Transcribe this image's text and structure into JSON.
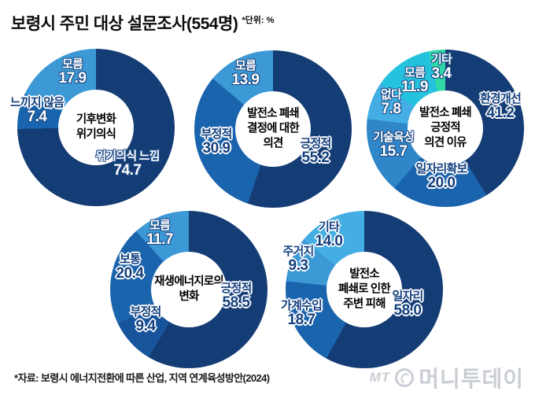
{
  "title": "보령시 주민 대상 설문조사(554명)",
  "unit_note": "*단위: %",
  "source": "*자료: 보령시 에너지전환에 따른 산업, 지역 연계육성방안(2024)",
  "logo": {
    "mt": "MT",
    "name": "머니투데이"
  },
  "palette": {
    "navy": "#143c75",
    "deep_blue": "#17549c",
    "medium_blue": "#1a64ad",
    "medium_light_blue": "#2f87c9",
    "light_blue": "#3c99d5",
    "sky_blue": "#44aee4",
    "cyan": "#25c2de",
    "mint": "#2fd8a6"
  },
  "chart_data": [
    {
      "type": "donut",
      "id": "climate-crisis-awareness",
      "center_label": [
        "기후변화",
        "위기의식"
      ],
      "segments": [
        {
          "label": "위기의식 느낌",
          "value": 74.7,
          "color": "#143c75",
          "name_style": "light",
          "value_style": "light"
        },
        {
          "label": "느끼지 않음",
          "value": 7.4,
          "color": "#1a64ad",
          "name_style": "dark",
          "value_style": "light"
        },
        {
          "label": "모름",
          "value": 17.9,
          "color": "#3c99d5",
          "name_style": "light",
          "value_style": "light"
        }
      ]
    },
    {
      "type": "donut",
      "id": "plant-closure-opinion",
      "center_label": [
        "발전소 폐쇄",
        "결정에 대한",
        "의견"
      ],
      "segments": [
        {
          "label": "긍정적",
          "value": 55.2,
          "color": "#143c75",
          "name_style": "dark",
          "value_style": "dark"
        },
        {
          "label": "부정적",
          "value": 30.9,
          "color": "#1a64ad",
          "name_style": "dark",
          "value_style": "dark"
        },
        {
          "label": "모름",
          "value": 13.9,
          "color": "#3c99d5",
          "name_style": "light",
          "value_style": "light"
        }
      ]
    },
    {
      "type": "donut",
      "id": "positive-opinion-reason",
      "center_label": [
        "발전소 폐쇄",
        "긍정적",
        "의견 이유"
      ],
      "segments": [
        {
          "label": "환경개선",
          "value": 41.2,
          "color": "#143c75",
          "name_style": "dark",
          "value_style": "dark"
        },
        {
          "label": "일자리확보",
          "value": 20.0,
          "color": "#1a64ad",
          "name_style": "dark",
          "value_style": "dark"
        },
        {
          "label": "기술육성",
          "value": 15.7,
          "color": "#2f87c9",
          "name_style": "light",
          "value_style": "light"
        },
        {
          "label": "없다",
          "value": 7.8,
          "color": "#44aee4",
          "name_style": "light",
          "value_style": "light"
        },
        {
          "label": "모름",
          "value": 11.9,
          "color": "#25c2de",
          "name_style": "light",
          "value_style": "light"
        },
        {
          "label": "기타",
          "value": 3.4,
          "color": "#2fd8a6",
          "name_style": "light",
          "value_style": "light"
        }
      ]
    },
    {
      "type": "donut",
      "id": "renewable-energy-change",
      "center_label": [
        "재생에너지로의",
        "변화"
      ],
      "segments": [
        {
          "label": "긍정적",
          "value": 58.5,
          "color": "#143c75",
          "name_style": "dark",
          "value_style": "dark"
        },
        {
          "label": "부정적",
          "value": 9.4,
          "color": "#17549c",
          "name_style": "dark",
          "value_style": "dark"
        },
        {
          "label": "보통",
          "value": 20.4,
          "color": "#1a64ad",
          "name_style": "dark",
          "value_style": "dark"
        },
        {
          "label": "모름",
          "value": 11.7,
          "color": "#3c99d5",
          "name_style": "light",
          "value_style": "light"
        }
      ]
    },
    {
      "type": "donut",
      "id": "closure-damage",
      "center_label": [
        "발전소",
        "폐쇄로 인한",
        "주변 피해"
      ],
      "segments": [
        {
          "label": "일자리",
          "value": 58.0,
          "color": "#143c75",
          "name_style": "dark",
          "value_style": "dark"
        },
        {
          "label": "가계수입",
          "value": 18.7,
          "color": "#1a64ad",
          "name_style": "dark",
          "value_style": "dark"
        },
        {
          "label": "주거지",
          "value": 9.3,
          "color": "#3c99d5",
          "name_style": "dark",
          "value_style": "dark"
        },
        {
          "label": "기타",
          "value": 14.0,
          "color": "#44aee4",
          "name_style": "dark",
          "value_style": "dark"
        }
      ]
    }
  ]
}
